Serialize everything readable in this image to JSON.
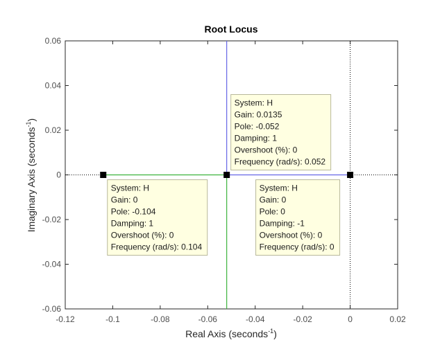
{
  "chart_data": {
    "type": "line",
    "title": "Root Locus",
    "xlabel": {
      "main": "Real Axis (seconds",
      "sup": "-1",
      "close": ")"
    },
    "ylabel": {
      "main": "Imaginary Axis (seconds",
      "sup": "-1",
      "close": ")"
    },
    "xlim": [
      -0.12,
      0.02
    ],
    "ylim": [
      -0.06,
      0.06
    ],
    "xticks": [
      -0.12,
      -0.1,
      -0.08,
      -0.06,
      -0.04,
      -0.02,
      0,
      0.02
    ],
    "xtick_labels": [
      "-0.12",
      "-0.1",
      "-0.08",
      "-0.06",
      "-0.04",
      "-0.02",
      "0",
      "0.02"
    ],
    "yticks": [
      -0.06,
      -0.04,
      -0.02,
      0,
      0.02,
      0.04,
      0.06
    ],
    "ytick_labels": [
      "-0.06",
      "-0.04",
      "-0.02",
      "0",
      "0.02",
      "0.04",
      "0.06"
    ],
    "grid": false,
    "series": [
      {
        "color": "#3cb33c",
        "segments": [
          [
            [
              -0.104,
              0
            ],
            [
              -0.052,
              0
            ]
          ],
          [
            [
              -0.052,
              0
            ],
            [
              -0.052,
              -0.06
            ]
          ]
        ]
      },
      {
        "color": "#6464e6",
        "segments": [
          [
            [
              0,
              0
            ],
            [
              -0.052,
              0
            ]
          ],
          [
            [
              -0.052,
              0
            ],
            [
              -0.052,
              0.06
            ]
          ]
        ]
      }
    ],
    "reference_lines": [
      {
        "orientation": "horizontal",
        "value": 0,
        "style": "dotted",
        "color": "#000000"
      },
      {
        "orientation": "vertical",
        "value": 0,
        "style": "dotted",
        "color": "#000000"
      }
    ],
    "markers": [
      {
        "x": -0.104,
        "y": 0
      },
      {
        "x": -0.052,
        "y": 0
      },
      {
        "x": 0,
        "y": 0
      }
    ],
    "datatips": [
      {
        "anchor": "top-center",
        "lines": [
          "System: H",
          "Gain: 0.0135",
          "Pole: -0.052",
          "Damping: 1",
          "Overshoot (%): 0",
          "Frequency (rad/s): 0.052"
        ]
      },
      {
        "anchor": "bottom-left",
        "lines": [
          "System: H",
          "Gain: 0",
          "Pole: -0.104",
          "Damping: 1",
          "Overshoot (%): 0",
          "Frequency (rad/s): 0.104"
        ]
      },
      {
        "anchor": "bottom-right",
        "lines": [
          "System: H",
          "Gain: 0",
          "Pole: 0",
          "Damping: -1",
          "Overshoot (%): 0",
          "Frequency (rad/s): 0"
        ]
      }
    ]
  }
}
